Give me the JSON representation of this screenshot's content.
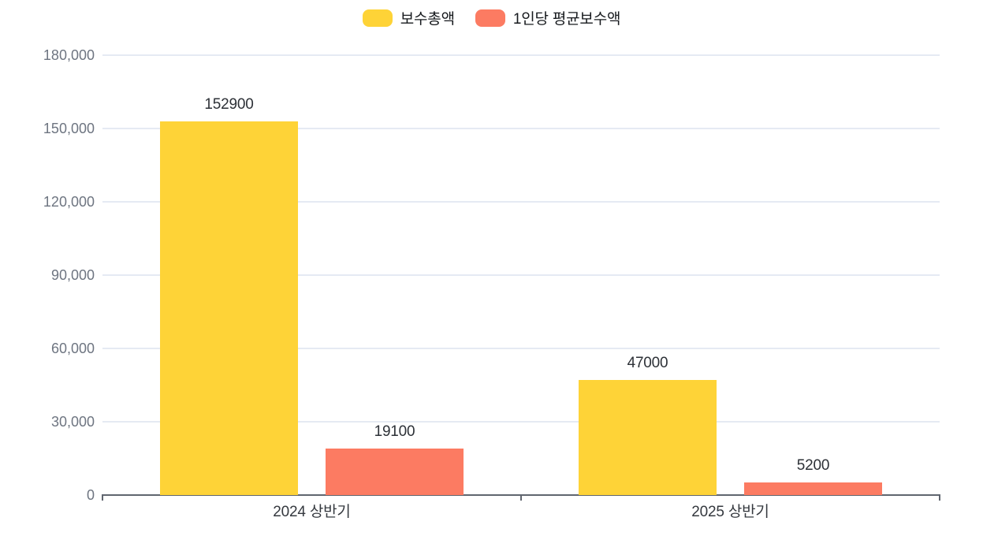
{
  "chart_data": {
    "type": "bar",
    "title": "",
    "categories": [
      "2024 상반기",
      "2025 상반기"
    ],
    "series": [
      {
        "name": "보수총액",
        "color": "#fed337",
        "values": [
          152900,
          47000
        ]
      },
      {
        "name": "1인당 평균보수액",
        "color": "#fc7b62",
        "values": [
          19100,
          5200
        ]
      }
    ],
    "value_labels": [
      [
        "152900",
        "47000"
      ],
      [
        "19100",
        "5200"
      ]
    ],
    "ylim": [
      0,
      180000
    ],
    "ytick_step": 30000,
    "ytick_labels": [
      "0",
      "30,000",
      "60,000",
      "90,000",
      "120,000",
      "150,000",
      "180,000"
    ],
    "grid": true,
    "legend_position": "top"
  },
  "legend": {
    "items": [
      {
        "label": "보수총액",
        "color": "#fed337"
      },
      {
        "label": "1인당 평균보수액",
        "color": "#fc7b62"
      }
    ]
  },
  "colors": {
    "background": "#ffffff",
    "gridline": "#e5eaf3",
    "axis": "#60666f",
    "y_tick_label": "#6e7581",
    "value_label": "#2d3137",
    "category_label": "#35393f"
  }
}
